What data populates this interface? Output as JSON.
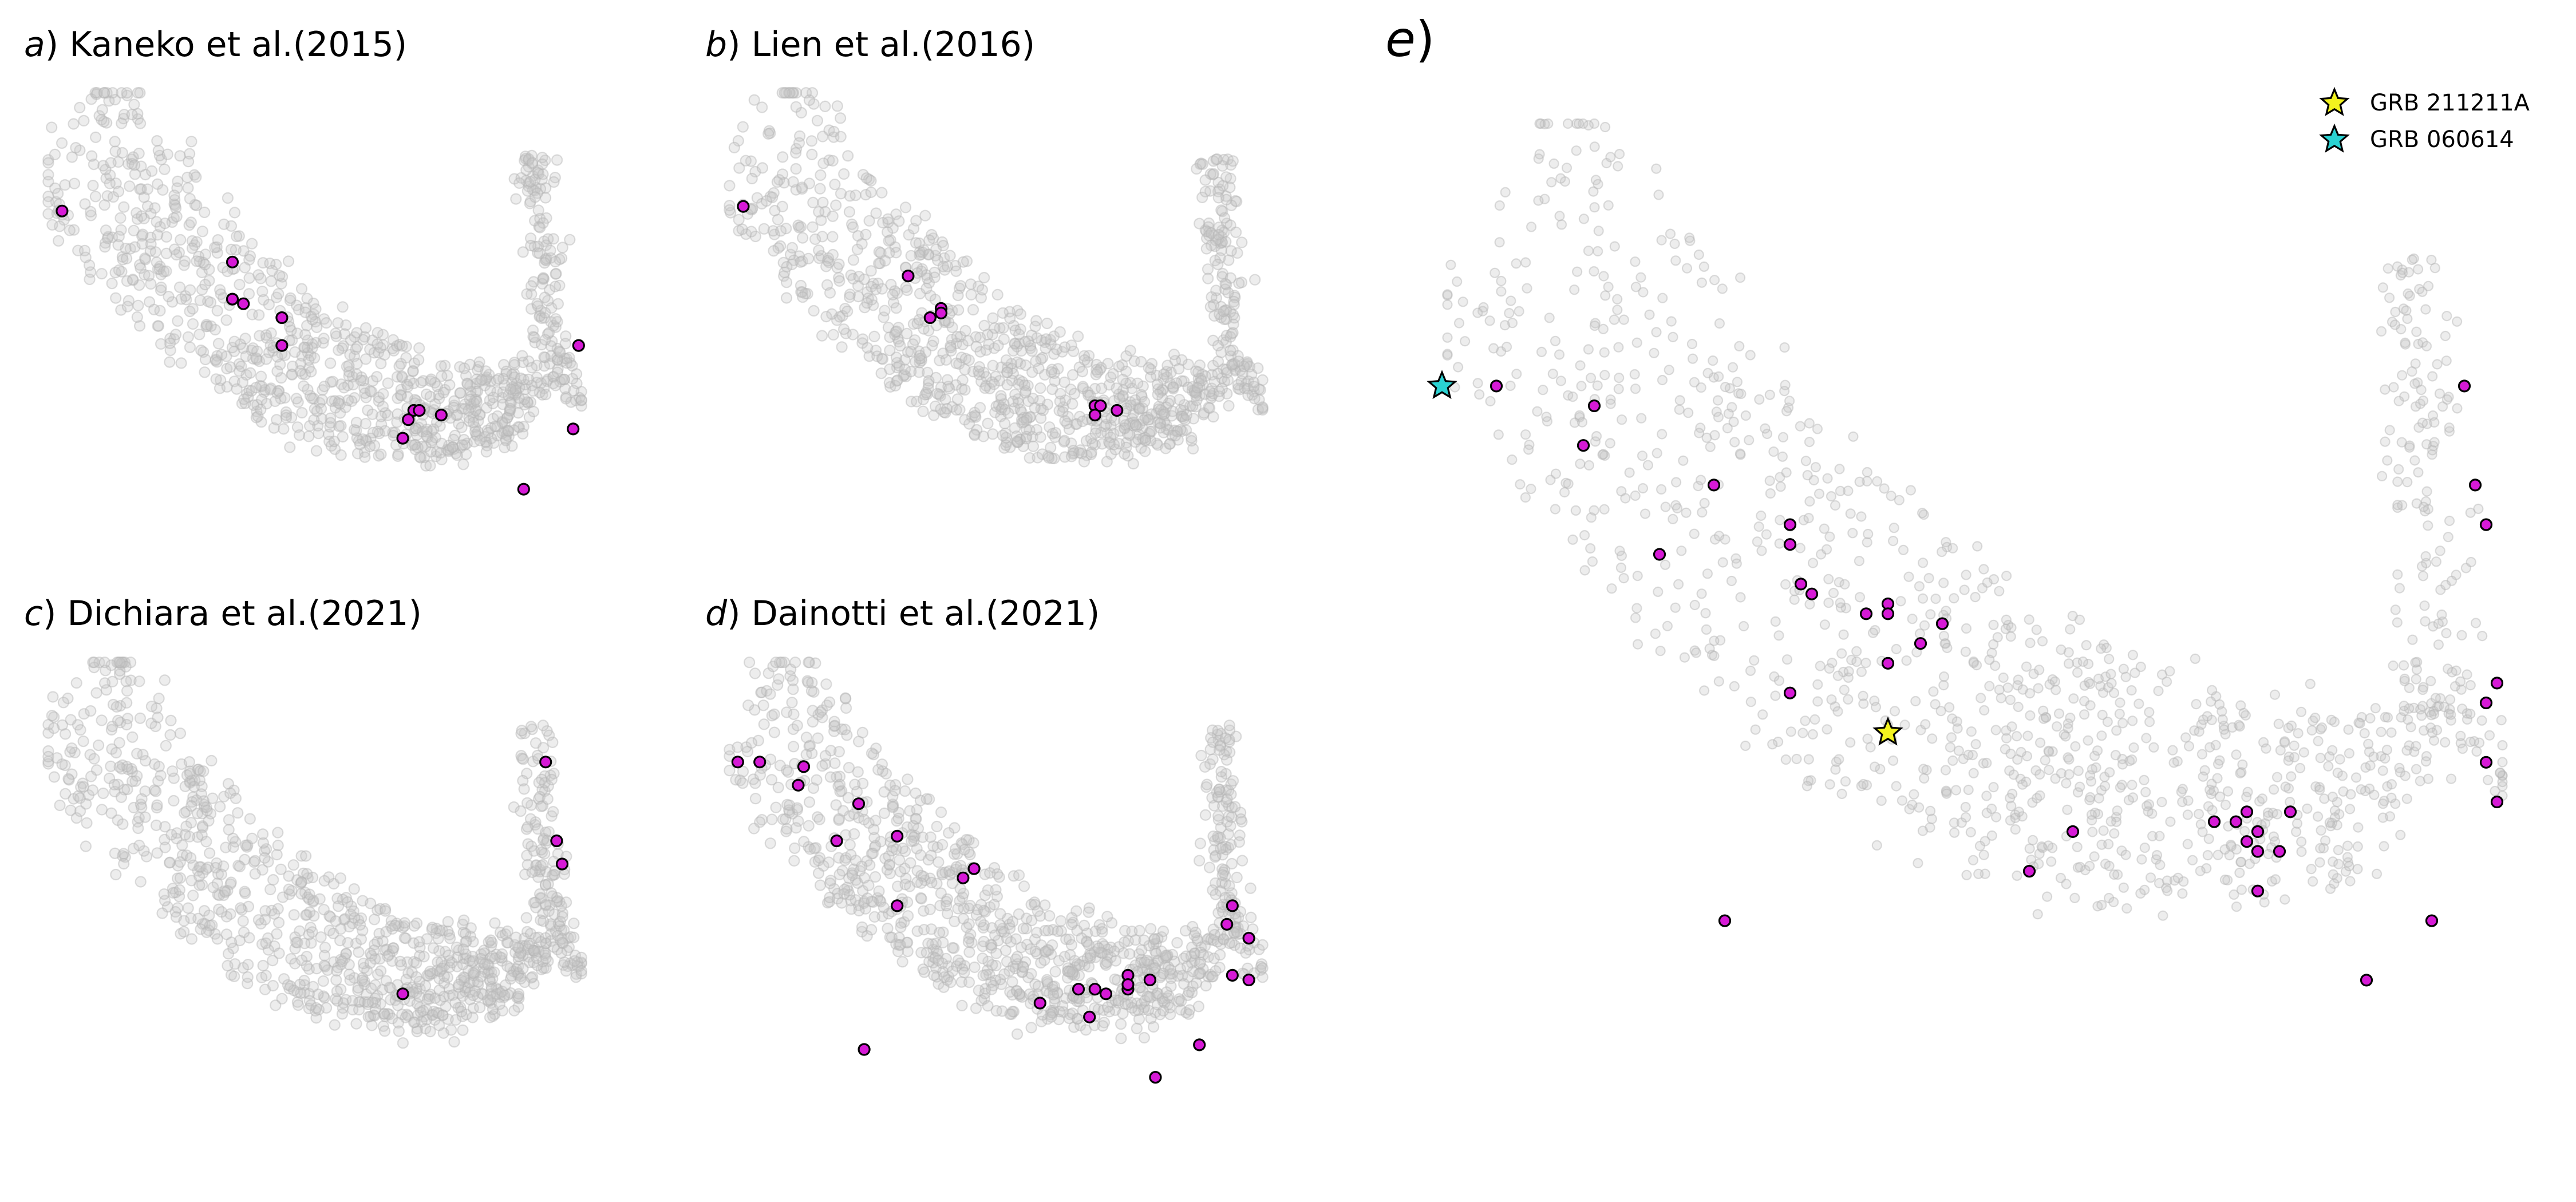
{
  "colors": {
    "highlight": "#d61ad6",
    "background_points": "#c8c8c8",
    "star_grb211211a": "#f2f21e",
    "star_grb060614": "#2ad2d2"
  },
  "chart_data": [
    {
      "panel": "a",
      "type": "scatter",
      "title_letter": "a",
      "title_text": ") Kaneko et al.(2015)",
      "xlim": [
        0,
        1
      ],
      "ylim": [
        0,
        1
      ],
      "grid": false,
      "highlighted_points": [
        [
          0.04,
          0.73
        ],
        [
          0.35,
          0.62
        ],
        [
          0.35,
          0.54
        ],
        [
          0.37,
          0.53
        ],
        [
          0.44,
          0.5
        ],
        [
          0.44,
          0.44
        ],
        [
          0.68,
          0.3
        ],
        [
          0.69,
          0.3
        ],
        [
          0.67,
          0.28
        ],
        [
          0.73,
          0.29
        ],
        [
          0.66,
          0.24
        ],
        [
          0.98,
          0.44
        ],
        [
          0.97,
          0.26
        ],
        [
          0.88,
          0.13
        ]
      ]
    },
    {
      "panel": "b",
      "type": "scatter",
      "title_letter": "b",
      "title_text": ") Lien et al.(2016)",
      "xlim": [
        0,
        1
      ],
      "ylim": [
        0,
        1
      ],
      "grid": false,
      "highlighted_points": [
        [
          0.04,
          0.74
        ],
        [
          0.34,
          0.59
        ],
        [
          0.38,
          0.5
        ],
        [
          0.4,
          0.52
        ],
        [
          0.4,
          0.51
        ],
        [
          0.68,
          0.31
        ],
        [
          0.69,
          0.31
        ],
        [
          0.68,
          0.29
        ],
        [
          0.72,
          0.3
        ]
      ]
    },
    {
      "panel": "c",
      "type": "scatter",
      "title_letter": "c",
      "title_text": ") Dichiara et al.(2021)",
      "xlim": [
        0,
        1
      ],
      "ylim": [
        0,
        1
      ],
      "grid": false,
      "highlighted_points": [
        [
          0.92,
          0.77
        ],
        [
          0.94,
          0.6
        ],
        [
          0.95,
          0.55
        ],
        [
          0.66,
          0.27
        ]
      ]
    },
    {
      "panel": "d",
      "type": "scatter",
      "title_letter": "d",
      "title_text": ") Dainotti et al.(2021)",
      "xlim": [
        0,
        1
      ],
      "ylim": [
        0,
        1
      ],
      "grid": false,
      "highlighted_points": [
        [
          0.03,
          0.77
        ],
        [
          0.07,
          0.77
        ],
        [
          0.15,
          0.76
        ],
        [
          0.14,
          0.72
        ],
        [
          0.25,
          0.68
        ],
        [
          0.21,
          0.6
        ],
        [
          0.32,
          0.61
        ],
        [
          0.44,
          0.52
        ],
        [
          0.46,
          0.54
        ],
        [
          0.32,
          0.46
        ],
        [
          0.65,
          0.28
        ],
        [
          0.68,
          0.28
        ],
        [
          0.7,
          0.27
        ],
        [
          0.74,
          0.28
        ],
        [
          0.74,
          0.31
        ],
        [
          0.74,
          0.29
        ],
        [
          0.78,
          0.3
        ],
        [
          0.58,
          0.25
        ],
        [
          0.67,
          0.22
        ],
        [
          0.93,
          0.46
        ],
        [
          0.92,
          0.42
        ],
        [
          0.96,
          0.39
        ],
        [
          0.96,
          0.3
        ],
        [
          0.93,
          0.31
        ],
        [
          0.87,
          0.16
        ],
        [
          0.79,
          0.09
        ],
        [
          0.26,
          0.15
        ]
      ]
    },
    {
      "panel": "e",
      "type": "scatter",
      "title_letter": "e",
      "title_text": ")",
      "xlim": [
        0,
        1
      ],
      "ylim": [
        0,
        1
      ],
      "grid": false,
      "legend_placement": "top-right",
      "legend": [
        {
          "label": "GRB 211211A",
          "marker": "star",
          "color": "#f2f21e"
        },
        {
          "label": "GRB 060614",
          "marker": "star",
          "color": "#2ad2d2"
        }
      ],
      "stars": [
        {
          "label": "GRB 211211A",
          "point": [
            0.42,
            0.37
          ]
        },
        {
          "label": "GRB 060614",
          "point": [
            0.01,
            0.72
          ]
        }
      ],
      "highlighted_points": [
        [
          0.06,
          0.72
        ],
        [
          0.15,
          0.7
        ],
        [
          0.14,
          0.66
        ],
        [
          0.26,
          0.62
        ],
        [
          0.33,
          0.58
        ],
        [
          0.33,
          0.56
        ],
        [
          0.21,
          0.55
        ],
        [
          0.34,
          0.52
        ],
        [
          0.35,
          0.51
        ],
        [
          0.4,
          0.49
        ],
        [
          0.42,
          0.5
        ],
        [
          0.42,
          0.49
        ],
        [
          0.47,
          0.48
        ],
        [
          0.45,
          0.46
        ],
        [
          0.42,
          0.44
        ],
        [
          0.33,
          0.41
        ],
        [
          0.59,
          0.27
        ],
        [
          0.72,
          0.28
        ],
        [
          0.74,
          0.28
        ],
        [
          0.75,
          0.29
        ],
        [
          0.75,
          0.26
        ],
        [
          0.76,
          0.27
        ],
        [
          0.76,
          0.25
        ],
        [
          0.79,
          0.29
        ],
        [
          0.78,
          0.25
        ],
        [
          0.76,
          0.21
        ],
        [
          0.55,
          0.23
        ],
        [
          0.95,
          0.72
        ],
        [
          0.96,
          0.62
        ],
        [
          0.97,
          0.58
        ],
        [
          0.98,
          0.42
        ],
        [
          0.97,
          0.4
        ],
        [
          0.97,
          0.34
        ],
        [
          0.98,
          0.3
        ],
        [
          0.92,
          0.18
        ],
        [
          0.86,
          0.12
        ],
        [
          0.27,
          0.18
        ]
      ]
    }
  ]
}
